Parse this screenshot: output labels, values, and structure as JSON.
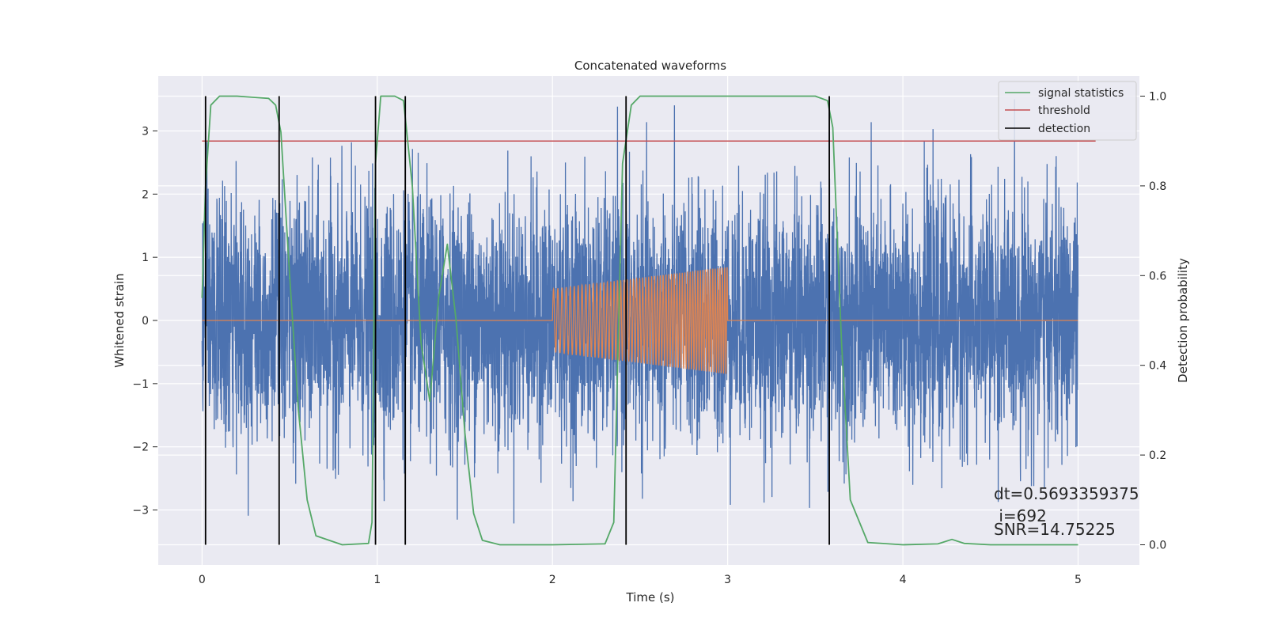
{
  "chart_data": {
    "type": "line",
    "title": "Concatenated waveforms",
    "xlabel": "Time (s)",
    "ylabel": "Whitened strain",
    "y2label": "Detection probability",
    "xlim": [
      -0.25,
      5.35
    ],
    "ylim": [
      -3.87,
      3.87
    ],
    "y2lim": [
      -0.045,
      1.045
    ],
    "xticks": [
      0,
      1,
      2,
      3,
      4,
      5
    ],
    "yticks": [
      -3,
      -2,
      -1,
      0,
      1,
      2,
      3
    ],
    "y2ticks": [
      0.0,
      0.2,
      0.4,
      0.6,
      0.8,
      1.0
    ],
    "xtick_labels": [
      "0",
      "1",
      "2",
      "3",
      "4",
      "5"
    ],
    "ytick_labels": [
      "−3",
      "−2",
      "−1",
      "0",
      "1",
      "2",
      "3"
    ],
    "y2tick_labels": [
      "0.0",
      "0.2",
      "0.4",
      "0.6",
      "0.8",
      "1.0"
    ],
    "grid": true,
    "legend_position": "top-right",
    "legend": [
      {
        "name": "signal statistics",
        "color": "#55a868"
      },
      {
        "name": "threshold",
        "color": "#c44e52"
      },
      {
        "name": "detection",
        "color": "#000000"
      }
    ],
    "series": [
      {
        "kind": "noise",
        "color": "#4c72b0",
        "x_range": [
          0,
          5
        ],
        "approx_envelope": 2.0,
        "approx_peak": 3.5
      },
      {
        "kind": "chirp",
        "color": "#dd8452",
        "x_range": [
          2,
          3
        ],
        "amplitude_start": 0.5,
        "amplitude_end": 0.85,
        "baseline_value": 0
      },
      {
        "kind": "signal statistics",
        "color": "#55a868",
        "x": [
          0,
          0.02,
          0.05,
          0.1,
          0.2,
          0.38,
          0.42,
          0.45,
          0.5,
          0.55,
          0.6,
          0.65,
          0.8,
          0.95,
          0.97,
          0.99,
          1.02,
          1.1,
          1.15,
          1.2,
          1.25,
          1.3,
          1.35,
          1.4,
          1.45,
          1.5,
          1.55,
          1.6,
          1.7,
          2.0,
          2.3,
          2.35,
          2.4,
          2.45,
          2.5,
          2.55,
          2.6,
          3.0,
          3.5,
          3.57,
          3.6,
          3.65,
          3.7,
          3.8,
          4.0,
          4.2,
          4.28,
          4.35,
          4.5,
          5.0
        ],
        "y": [
          0.55,
          0.8,
          0.98,
          1.0,
          1.0,
          0.995,
          0.98,
          0.92,
          0.6,
          0.3,
          0.1,
          0.02,
          0.0,
          0.003,
          0.05,
          0.85,
          1.0,
          1.0,
          0.99,
          0.8,
          0.45,
          0.32,
          0.55,
          0.67,
          0.5,
          0.25,
          0.07,
          0.01,
          0.0,
          0.0,
          0.002,
          0.05,
          0.85,
          0.98,
          1.0,
          1.0,
          1.0,
          1.0,
          1.0,
          0.99,
          0.93,
          0.45,
          0.1,
          0.005,
          0.0,
          0.002,
          0.012,
          0.003,
          0.0,
          0.0
        ]
      },
      {
        "kind": "threshold",
        "color": "#c44e52",
        "x": [
          0,
          5.1
        ],
        "y": [
          0.9,
          0.9
        ]
      }
    ],
    "detections": [
      0.02,
      0.44,
      0.99,
      1.16,
      2.42,
      3.58
    ],
    "annotations": {
      "dt": "dt=0.5693359375",
      "i": " i=692",
      "snr": "SNR=14.75225"
    }
  }
}
